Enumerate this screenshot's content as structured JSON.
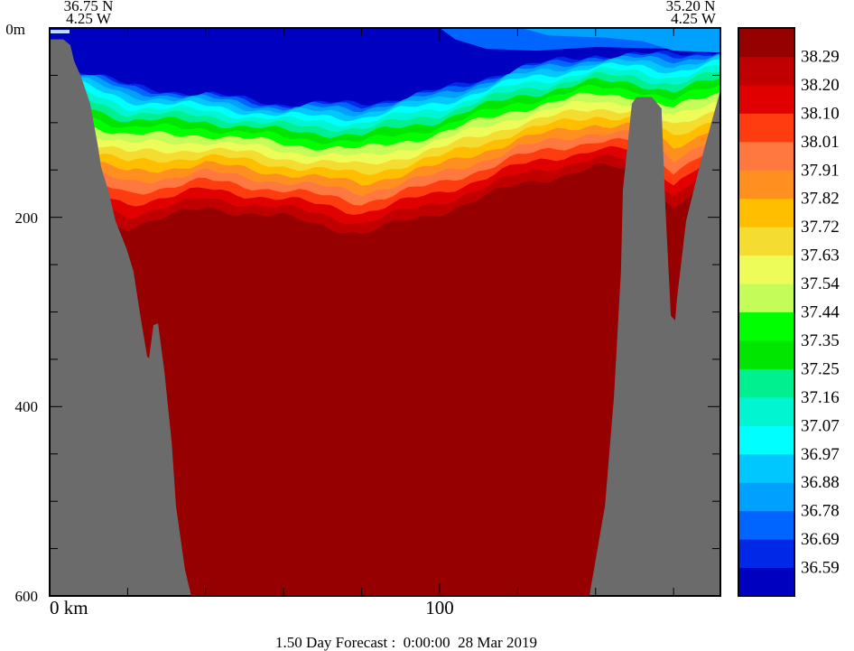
{
  "chart_data": {
    "type": "contour",
    "title": "1.50 Day Forecast :  0:00:00  28 Mar 2019",
    "xlabel_first": "0 km",
    "xtick_labels": [
      "100"
    ],
    "xticks_km": [
      20,
      40,
      60,
      80,
      100,
      120,
      140,
      160
    ],
    "xlim_km": [
      0,
      172
    ],
    "ylim_m": [
      0,
      600
    ],
    "ytick_labels": [
      "0m",
      "200",
      "400",
      "600"
    ],
    "ytick_values": [
      0,
      200,
      400,
      600
    ],
    "yminor_step_m": 50,
    "left_endpoint": {
      "lat": "36.75 N",
      "lon": "4.25 W"
    },
    "right_endpoint": {
      "lat": "35.20 N",
      "lon": "4.25 W"
    },
    "colorbar": {
      "labels": [
        "38.29",
        "38.20",
        "38.10",
        "38.01",
        "37.91",
        "37.82",
        "37.72",
        "37.63",
        "37.54",
        "37.44",
        "37.35",
        "37.25",
        "37.16",
        "37.07",
        "36.97",
        "36.88",
        "36.78",
        "36.69",
        "36.59"
      ],
      "colors_low_to_high": [
        "#0000c0",
        "#0028e6",
        "#0064ff",
        "#00a0ff",
        "#00c8ff",
        "#00ffff",
        "#00f5d0",
        "#00f090",
        "#00e600",
        "#00ff00",
        "#c4fc5a",
        "#eefc5a",
        "#f5dc30",
        "#ffbe00",
        "#ff9020",
        "#ff7840",
        "#ff3c10",
        "#e00000",
        "#c00000",
        "#960000"
      ]
    },
    "isohaline_profile": {
      "x_km": [
        0,
        10,
        20,
        40,
        60,
        80,
        100,
        120,
        140,
        150,
        160,
        172
      ],
      "top_boundary_depth_m": [
        37,
        47,
        61,
        70,
        80,
        80,
        66,
        42,
        28,
        28,
        28,
        23
      ],
      "bottom_boundary_depth_m": [
        100,
        200,
        210,
        190,
        200,
        217,
        195,
        166,
        147,
        150,
        190,
        150
      ]
    },
    "surface_patches": [
      {
        "level_index": 2,
        "points": [
          [
            100,
            0
          ],
          [
            104,
            12
          ],
          [
            112,
            22
          ],
          [
            125,
            24
          ],
          [
            140,
            20
          ],
          [
            160,
            22
          ],
          [
            172,
            20
          ],
          [
            172,
            0
          ]
        ]
      },
      {
        "level_index": 3,
        "points": [
          [
            121,
            0
          ],
          [
            128,
            8
          ],
          [
            142,
            10
          ],
          [
            152,
            14
          ],
          [
            160,
            24
          ],
          [
            172,
            26
          ],
          [
            172,
            0
          ]
        ]
      }
    ],
    "bathymetry": {
      "color": "#6b6b6b",
      "left": [
        [
          0,
          600
        ],
        [
          0,
          12
        ],
        [
          3.5,
          12
        ],
        [
          5.3,
          18
        ],
        [
          6.3,
          35
        ],
        [
          8.1,
          52
        ],
        [
          10.4,
          80
        ],
        [
          12.3,
          123
        ],
        [
          13.2,
          147
        ],
        [
          15.0,
          171
        ],
        [
          16.9,
          204
        ],
        [
          19.7,
          233
        ],
        [
          21.5,
          257
        ],
        [
          23.1,
          300
        ],
        [
          25.0,
          347
        ],
        [
          25.5,
          349
        ],
        [
          26.6,
          314
        ],
        [
          27.8,
          312
        ],
        [
          29.4,
          362
        ],
        [
          31.3,
          438
        ],
        [
          32.4,
          505
        ],
        [
          34.7,
          572
        ],
        [
          36.3,
          600
        ]
      ],
      "right": [
        [
          138.4,
          600
        ],
        [
          140.0,
          562
        ],
        [
          142.4,
          505
        ],
        [
          144.7,
          390
        ],
        [
          146.5,
          257
        ],
        [
          147.0,
          171
        ],
        [
          149.3,
          80
        ],
        [
          150.5,
          73
        ],
        [
          154.4,
          73
        ],
        [
          156.9,
          85
        ],
        [
          157.9,
          190
        ],
        [
          159.3,
          304
        ],
        [
          160.4,
          309
        ],
        [
          160.9,
          285
        ],
        [
          163.2,
          204
        ],
        [
          166.9,
          142
        ],
        [
          170.1,
          94
        ],
        [
          172,
          66
        ],
        [
          172,
          600
        ]
      ]
    }
  }
}
